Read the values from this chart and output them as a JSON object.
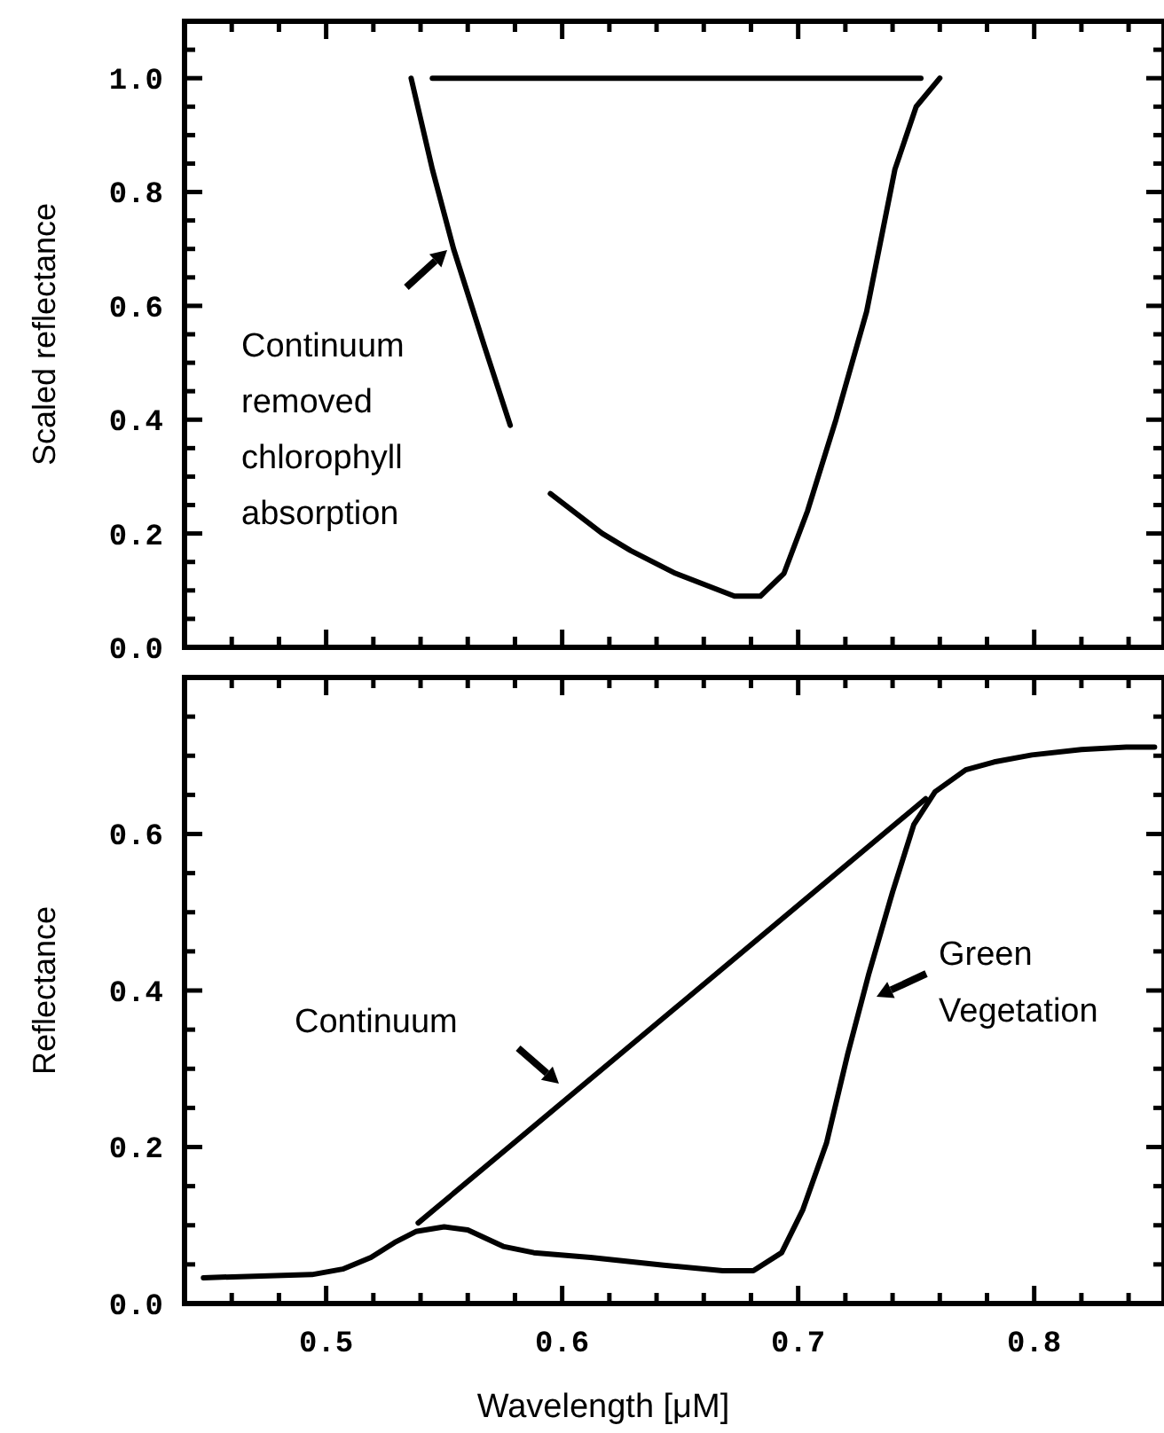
{
  "chart_data": [
    {
      "type": "line",
      "ylabel": "Scaled reflectance",
      "tick_labels": "y",
      "xlim": [
        0.44,
        0.855
      ],
      "ylim": [
        0,
        1.1
      ],
      "xticks": [
        {
          "value": 0.46,
          "label": null
        },
        {
          "value": 0.48,
          "label": null
        },
        0.5,
        {
          "value": 0.52,
          "label": null
        },
        {
          "value": 0.54,
          "label": null
        },
        {
          "value": 0.56,
          "label": null
        },
        {
          "value": 0.58,
          "label": null
        },
        0.6,
        {
          "value": 0.62,
          "label": null
        },
        {
          "value": 0.64,
          "label": null
        },
        {
          "value": 0.66,
          "label": null
        },
        {
          "value": 0.68,
          "label": null
        },
        0.7,
        {
          "value": 0.72,
          "label": null
        },
        {
          "value": 0.74,
          "label": null
        },
        {
          "value": 0.76,
          "label": null
        },
        {
          "value": 0.78,
          "label": null
        },
        0.8,
        {
          "value": 0.82,
          "label": null
        },
        {
          "value": 0.84,
          "label": null
        }
      ],
      "yticks": [
        {
          "value": 0,
          "label": "0.0"
        },
        {
          "value": 0.05,
          "label": null
        },
        {
          "value": 0.1,
          "label": null
        },
        {
          "value": 0.15,
          "label": null
        },
        {
          "value": 0.2,
          "label": "0.2"
        },
        {
          "value": 0.25,
          "label": null
        },
        {
          "value": 0.3,
          "label": null
        },
        {
          "value": 0.35,
          "label": null
        },
        {
          "value": 0.4,
          "label": "0.4"
        },
        {
          "value": 0.45,
          "label": null
        },
        {
          "value": 0.5,
          "label": null
        },
        {
          "value": 0.55,
          "label": null
        },
        {
          "value": 0.6,
          "label": "0.6"
        },
        {
          "value": 0.65,
          "label": null
        },
        {
          "value": 0.7,
          "label": null
        },
        {
          "value": 0.75,
          "label": null
        },
        {
          "value": 0.8,
          "label": "0.8"
        },
        {
          "value": 0.85,
          "label": null
        },
        {
          "value": 0.9,
          "label": null
        },
        {
          "value": 0.95,
          "label": null
        },
        {
          "value": 1.0,
          "label": "1.0"
        },
        {
          "value": 1.05,
          "label": null
        }
      ],
      "series": [
        {
          "color": "#000000",
          "x": [
            0.536,
            0.545,
            0.554,
            0.567,
            0.578,
            0.586,
            0.595,
            0.617,
            0.629,
            0.648,
            0.673,
            0.684,
            0.694,
            0.704,
            0.716,
            0.729,
            0.741,
            0.75,
            0.76
          ],
          "values": [
            1.0,
            0.84,
            0.7,
            0.53,
            0.39,
            null,
            0.27,
            0.2,
            0.17,
            0.13,
            0.09,
            0.09,
            0.13,
            0.24,
            0.4,
            0.59,
            0.84,
            0.95,
            1.0
          ]
        },
        {
          "color": "#000000",
          "x": [
            0.545,
            0.752
          ],
          "values": [
            1.0,
            1.0
          ]
        }
      ],
      "annotations": [
        "Continuum\nremoved\nchlorophyll\nabsorption"
      ]
    },
    {
      "type": "line",
      "xlabel": "Wavelength [μM]",
      "ylabel": "Reflectance",
      "xlim": [
        0.44,
        0.855
      ],
      "ylim": [
        0,
        0.8
      ],
      "xticks": [
        {
          "value": 0.46,
          "label": null
        },
        {
          "value": 0.48,
          "label": null
        },
        {
          "value": 0.5,
          "label": "0.5"
        },
        {
          "value": 0.52,
          "label": null
        },
        {
          "value": 0.54,
          "label": null
        },
        {
          "value": 0.56,
          "label": null
        },
        {
          "value": 0.58,
          "label": null
        },
        {
          "value": 0.6,
          "label": "0.6"
        },
        {
          "value": 0.62,
          "label": null
        },
        {
          "value": 0.64,
          "label": null
        },
        {
          "value": 0.66,
          "label": null
        },
        {
          "value": 0.68,
          "label": null
        },
        {
          "value": 0.7,
          "label": "0.7"
        },
        {
          "value": 0.72,
          "label": null
        },
        {
          "value": 0.74,
          "label": null
        },
        {
          "value": 0.76,
          "label": null
        },
        {
          "value": 0.78,
          "label": null
        },
        {
          "value": 0.8,
          "label": "0.8"
        },
        {
          "value": 0.82,
          "label": null
        },
        {
          "value": 0.84,
          "label": null
        }
      ],
      "yticks": [
        {
          "value": 0,
          "label": "0.0"
        },
        {
          "value": 0.05,
          "label": null
        },
        {
          "value": 0.1,
          "label": null
        },
        {
          "value": 0.15,
          "label": null
        },
        {
          "value": 0.2,
          "label": "0.2"
        },
        {
          "value": 0.25,
          "label": null
        },
        {
          "value": 0.3,
          "label": null
        },
        {
          "value": 0.35,
          "label": null
        },
        {
          "value": 0.4,
          "label": "0.4"
        },
        {
          "value": 0.45,
          "label": null
        },
        {
          "value": 0.5,
          "label": null
        },
        {
          "value": 0.55,
          "label": null
        },
        {
          "value": 0.6,
          "label": "0.6"
        },
        {
          "value": 0.65,
          "label": null
        },
        {
          "value": 0.7,
          "label": null
        },
        {
          "value": 0.75,
          "label": null
        }
      ],
      "series": [
        {
          "color": "#000000",
          "x": [
            0.448,
            0.494,
            0.507,
            0.519,
            0.529,
            0.538,
            0.55,
            0.56,
            0.575,
            0.588,
            0.612,
            0.643,
            0.668,
            0.681,
            0.693,
            0.702,
            0.712,
            0.721,
            0.73,
            0.74,
            0.749,
            0.758,
            0.771,
            0.783,
            0.799,
            0.82,
            0.839,
            0.851
          ],
          "values": [
            0.033,
            0.037,
            0.044,
            0.059,
            0.078,
            0.092,
            0.098,
            0.094,
            0.073,
            0.065,
            0.059,
            0.049,
            0.042,
            0.042,
            0.065,
            0.12,
            0.205,
            0.319,
            0.422,
            0.526,
            0.612,
            0.654,
            0.682,
            0.692,
            0.701,
            0.708,
            0.711,
            0.711
          ]
        },
        {
          "color": "#000000",
          "x": [
            0.539,
            0.754
          ],
          "values": [
            0.103,
            0.645
          ]
        }
      ],
      "annotations": [
        "Continuum",
        "Green\nVegetation"
      ]
    }
  ]
}
